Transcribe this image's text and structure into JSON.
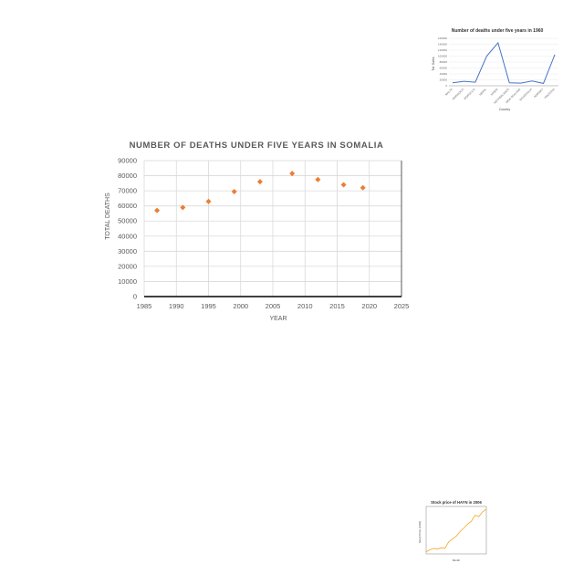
{
  "chart_data": [
    {
      "type": "scatter",
      "title": "NUMBER OF DEATHS UNDER FIVE YEARS IN SOMALIA",
      "xlabel": "YEAR",
      "ylabel": "TOTAL DEATHS",
      "xlim": [
        1985,
        2025
      ],
      "ylim": [
        0,
        90000
      ],
      "xticks": [
        1985,
        1990,
        1995,
        2000,
        2005,
        2010,
        2015,
        2020,
        2025
      ],
      "yticks": [
        0,
        10000,
        20000,
        30000,
        40000,
        50000,
        60000,
        70000,
        80000,
        90000
      ],
      "grid": true,
      "marker_color": "#ed7d31",
      "points": [
        {
          "x": 1987,
          "y": 57000
        },
        {
          "x": 1991,
          "y": 59000
        },
        {
          "x": 1995,
          "y": 63000
        },
        {
          "x": 1999,
          "y": 69500
        },
        {
          "x": 2003,
          "y": 76000
        },
        {
          "x": 2008,
          "y": 81500
        },
        {
          "x": 2012,
          "y": 77500
        },
        {
          "x": 2016,
          "y": 74000
        },
        {
          "x": 2019,
          "y": 72000
        }
      ]
    },
    {
      "type": "line",
      "title": "Number of deaths under five years in 1960",
      "xlabel": "Country",
      "ylabel": "Tot. Sales",
      "ylim": [
        0,
        160000
      ],
      "yticks": [
        0,
        20000,
        40000,
        60000,
        80000,
        100000,
        120000,
        140000,
        160000
      ],
      "line_color": "#4472c4",
      "categories": [
        "MALTA",
        "MONGOLIA",
        "MOROCCO",
        "NEPAL",
        "NIGER",
        "NETHERLANDS",
        "NEW ZEALAND",
        "NICARAGUA",
        "NORWAY",
        "PAKISTAN"
      ],
      "values": [
        10000,
        15000,
        12000,
        100000,
        145000,
        10000,
        9000,
        16000,
        8000,
        105000
      ]
    },
    {
      "type": "line",
      "title": "Stock price of HAYN in 2006",
      "xlabel": "Month",
      "ylabel": "Stock Price (USD)",
      "line_color": "#f5a623",
      "ylim": [
        0,
        7
      ],
      "values": [
        0.3,
        0.6,
        0.8,
        0.7,
        0.9,
        0.8,
        1.8,
        2.2,
        2.6,
        3.3,
        3.8,
        4.4,
        4.8,
        5.7,
        5.5,
        6.2,
        6.6
      ]
    }
  ]
}
